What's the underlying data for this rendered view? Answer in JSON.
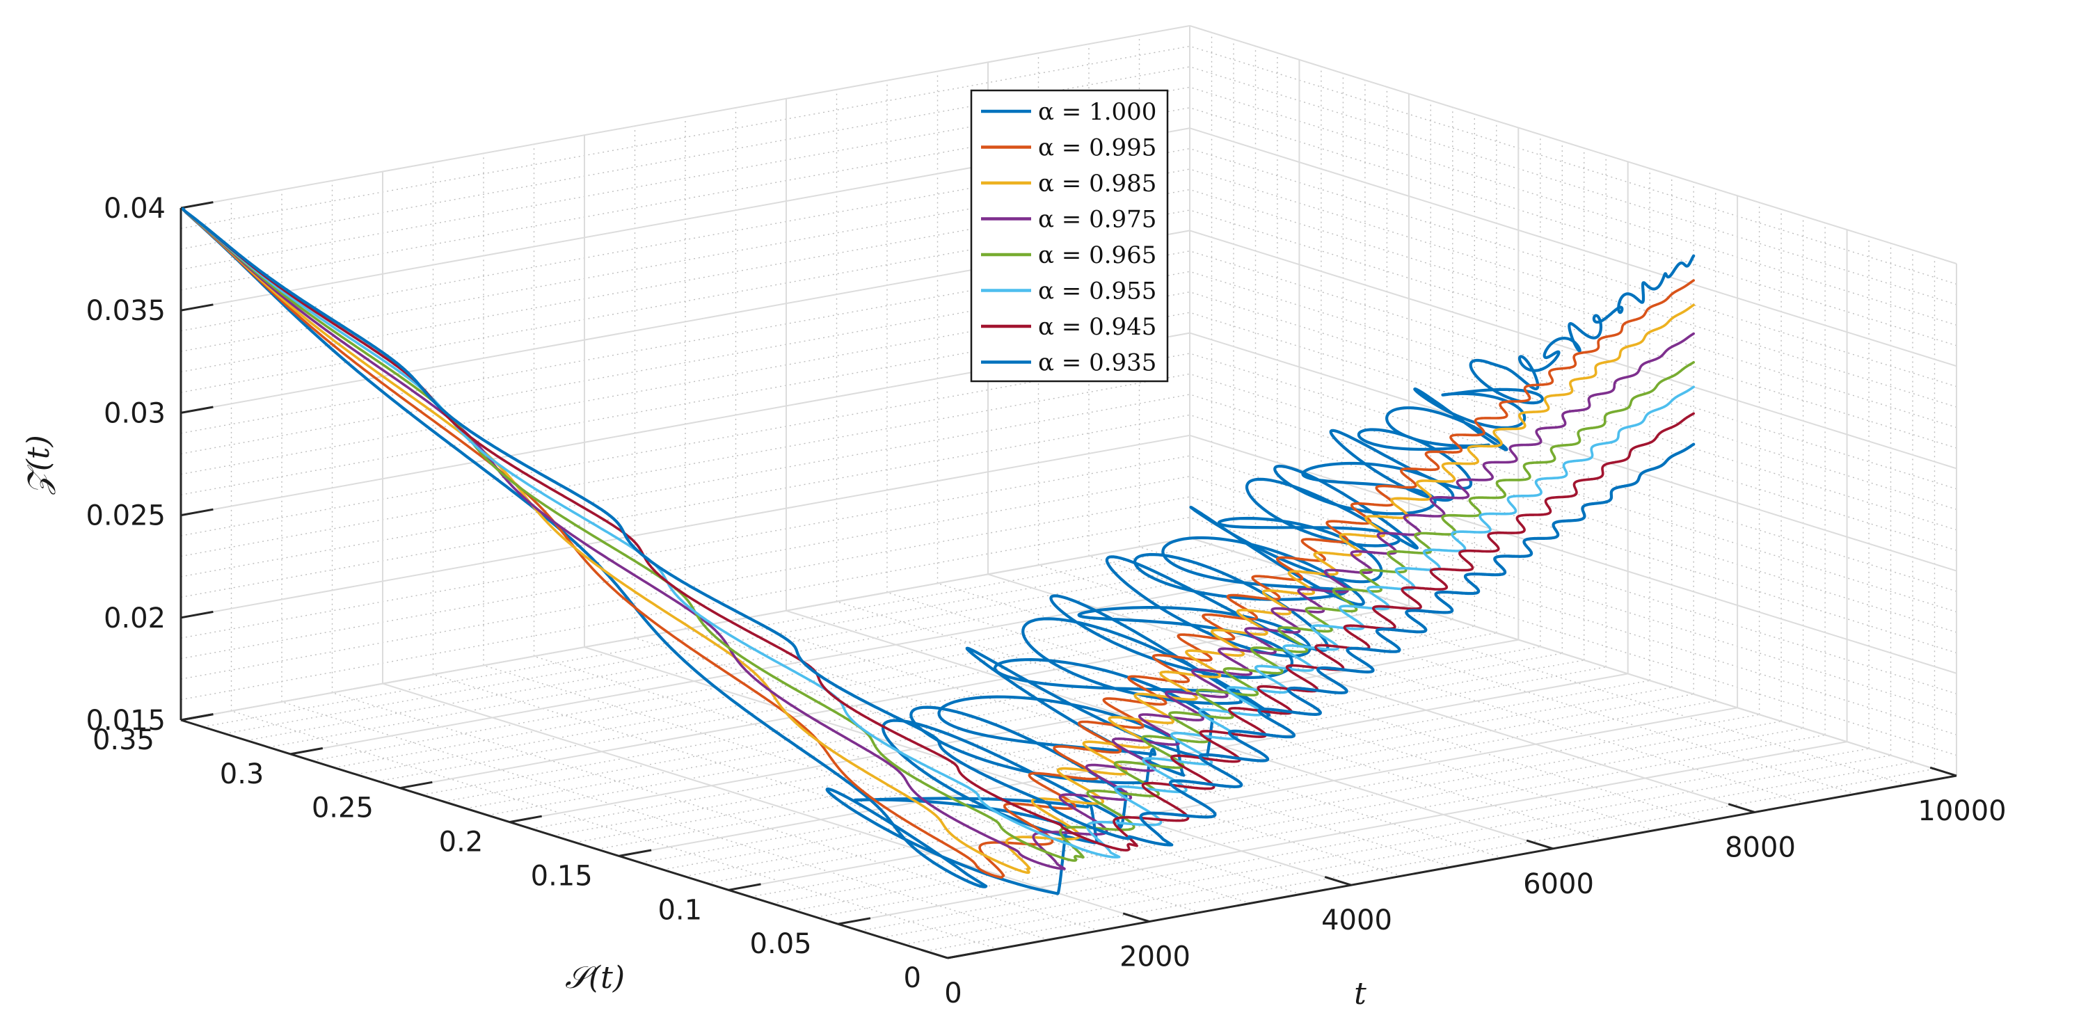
{
  "chart_data": {
    "type": "line",
    "projection": "3d",
    "title": "",
    "xlabel": "t",
    "ylabel": "𝒮(t)",
    "zlabel": "𝒵(t)",
    "xlim": [
      0,
      10000
    ],
    "ylim": [
      0,
      0.35
    ],
    "zlim": [
      0.015,
      0.04
    ],
    "grid": true,
    "minor_grid": true,
    "legend_position": "top-center",
    "x_ticks": [
      "0",
      "2000",
      "4000",
      "6000",
      "8000",
      "10000"
    ],
    "y_ticks": [
      "0",
      "0.05",
      "0.1",
      "0.15",
      "0.2",
      "0.25",
      "0.3",
      "0.35"
    ],
    "z_ticks": [
      "0.015",
      "0.02",
      "0.025",
      "0.03",
      "0.035",
      "0.04"
    ],
    "x_tick_values": [
      0,
      2000,
      4000,
      6000,
      8000,
      10000
    ],
    "y_tick_values": [
      0,
      0.05,
      0.1,
      0.15,
      0.2,
      0.25,
      0.3,
      0.35
    ],
    "z_tick_values": [
      0.015,
      0.02,
      0.025,
      0.03,
      0.035,
      0.04
    ],
    "initial_point": {
      "t": 0,
      "S": 0.35,
      "Z": 0.04
    },
    "series": [
      {
        "name": "α = 1.000",
        "alpha": 1.0,
        "color": "#0072BD",
        "final": {
          "t": 10000,
          "S": 0.12,
          "Z": 0.0363
        }
      },
      {
        "name": "α = 0.995",
        "alpha": 0.995,
        "color": "#D95319",
        "final": {
          "t": 10000,
          "S": 0.12,
          "Z": 0.0352
        }
      },
      {
        "name": "α = 0.985",
        "alpha": 0.985,
        "color": "#EDB120",
        "final": {
          "t": 10000,
          "S": 0.12,
          "Z": 0.034
        }
      },
      {
        "name": "α = 0.975",
        "alpha": 0.975,
        "color": "#7E2F8E",
        "final": {
          "t": 10000,
          "S": 0.12,
          "Z": 0.0326
        }
      },
      {
        "name": "α = 0.965",
        "alpha": 0.965,
        "color": "#77AC30",
        "final": {
          "t": 10000,
          "S": 0.12,
          "Z": 0.0312
        }
      },
      {
        "name": "α = 0.955",
        "alpha": 0.955,
        "color": "#4DBEEE",
        "final": {
          "t": 10000,
          "S": 0.12,
          "Z": 0.03
        }
      },
      {
        "name": "α = 0.945",
        "alpha": 0.945,
        "color": "#A2142F",
        "final": {
          "t": 10000,
          "S": 0.12,
          "Z": 0.0287
        }
      },
      {
        "name": "α = 0.935",
        "alpha": 0.935,
        "color": "#0072BD",
        "final": {
          "t": 10000,
          "S": 0.12,
          "Z": 0.0272
        }
      }
    ]
  }
}
